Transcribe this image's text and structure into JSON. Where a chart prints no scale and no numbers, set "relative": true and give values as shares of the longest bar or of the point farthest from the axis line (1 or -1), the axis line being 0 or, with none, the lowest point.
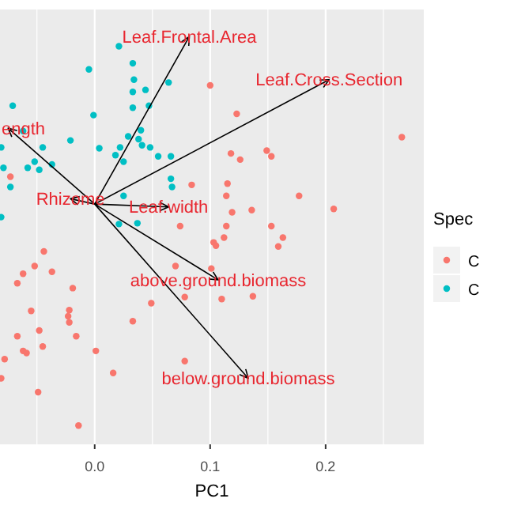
{
  "chart_data": {
    "type": "line",
    "relative": true,
    "xlabel": "PC1",
    "legend_title": "Spec",
    "legend": "right",
    "grid": "x",
    "tick_labels": "x",
    "xlim": [
      -0.082,
      0.285
    ],
    "xticks": [
      {
        "value": -0.05,
        "label": null
      },
      {
        "value": 0,
        "label": "0.0"
      },
      {
        "value": 0.05,
        "label": null
      },
      0.1,
      {
        "value": 0.15,
        "label": null
      },
      {
        "value": 0.2,
        "label": "0.2"
      },
      {
        "value": 0.25,
        "label": null
      }
    ],
    "series": [
      {
        "name": "C",
        "type": "scatter",
        "marker": "circle",
        "color": "#f8766d",
        "x": [
          0.1,
          0.123,
          -0.073,
          0.118,
          0.126,
          0.084,
          0.115,
          0.114,
          0.119,
          0.074,
          0.114,
          0.112,
          0.103,
          0.105,
          -0.044,
          0.266,
          0.149,
          0.153,
          0.177,
          0.136,
          0.207,
          0.153,
          0.163,
          0.159,
          -0.052,
          -0.062,
          -0.037,
          -0.067,
          -0.019,
          0.07,
          0.101,
          0.11,
          0.078,
          0.049,
          -0.055,
          -0.022,
          -0.023,
          -0.022,
          0.033,
          -0.048,
          -0.067,
          -0.016,
          -0.045,
          -0.062,
          -0.059,
          -0.078,
          0.001,
          0.078,
          0.016,
          -0.081,
          -0.049,
          -0.014,
          0.137
        ],
        "values": [
          0.88,
          0.81,
          0.656,
          0.713,
          0.698,
          0.636,
          0.639,
          0.609,
          0.569,
          0.535,
          0.535,
          0.507,
          0.495,
          0.487,
          0.473,
          0.753,
          0.72,
          0.706,
          0.609,
          0.574,
          0.577,
          0.535,
          0.507,
          0.485,
          0.437,
          0.418,
          0.423,
          0.395,
          0.383,
          0.437,
          0.431,
          0.356,
          0.361,
          0.346,
          0.327,
          0.329,
          0.314,
          0.299,
          0.302,
          0.279,
          0.265,
          0.265,
          0.24,
          0.229,
          0.224,
          0.209,
          0.229,
          0.204,
          0.175,
          0.162,
          0.128,
          0.046,
          0.363
        ]
      },
      {
        "name": "C",
        "type": "scatter",
        "marker": "circle",
        "color": "#00bfc4",
        "x": [
          0.021,
          -0.005,
          0.033,
          0.034,
          0.064,
          0.033,
          0.044,
          0.047,
          0.033,
          -0.071,
          -0.001,
          -0.062,
          0.04,
          0.029,
          0.038,
          -0.045,
          -0.021,
          0.004,
          0.022,
          0.041,
          0.048,
          0.018,
          0.025,
          0.055,
          0.066,
          -0.081,
          -0.052,
          -0.058,
          -0.048,
          -0.037,
          -0.079,
          0.066,
          -0.073,
          0.067,
          0.025,
          -0.081,
          0.021,
          0.037
        ],
        "values": [
          0.976,
          0.919,
          0.934,
          0.894,
          0.887,
          0.864,
          0.869,
          0.83,
          0.825,
          0.83,
          0.807,
          0.768,
          0.77,
          0.755,
          0.748,
          0.728,
          0.745,
          0.726,
          0.728,
          0.733,
          0.728,
          0.709,
          0.693,
          0.706,
          0.706,
          0.728,
          0.693,
          0.678,
          0.673,
          0.686,
          0.678,
          0.651,
          0.631,
          0.631,
          0.609,
          0.557,
          0.54,
          0.542
        ]
      },
      {
        "marker": "none",
        "color": "#000000",
        "x": [
          0,
          0.082,
          null,
          0,
          0.203,
          null,
          0,
          -0.075,
          null,
          0,
          -0.021,
          null,
          0,
          0.064,
          null,
          0,
          0.107,
          null,
          0,
          0.133
        ],
        "values": [
          0.589,
          1,
          null,
          0.589,
          0.894,
          null,
          0.589,
          0.775,
          null,
          0.589,
          0.602,
          null,
          0.589,
          0.582,
          null,
          0.589,
          0.403,
          null,
          0.589,
          0.162
        ]
      }
    ],
    "annotations": [
      "Leaf.Frontal.Area",
      "Leaf.Cross.Section",
      "ength",
      "Rhizome",
      "Leaf.width",
      "above.ground.biomass",
      "below.ground.biomass"
    ]
  }
}
